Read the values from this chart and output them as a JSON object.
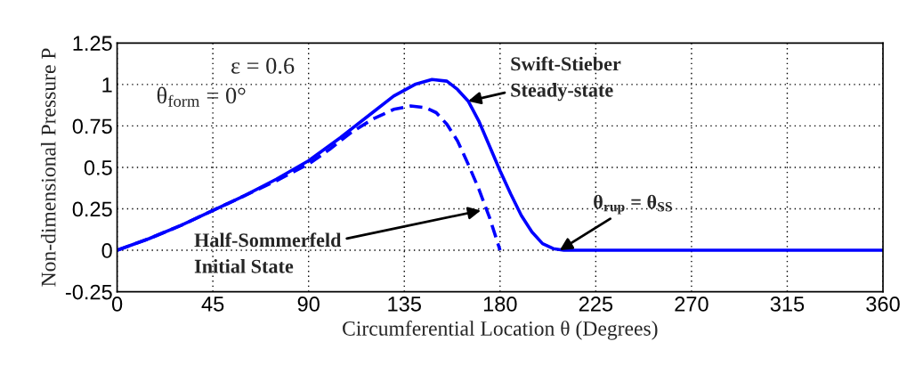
{
  "chart_data": {
    "type": "line",
    "xlabel": "Circumferential Location θ (Degrees)",
    "ylabel": "Non-dimensional Pressure P",
    "xlim": [
      0,
      360
    ],
    "xticks": [
      0,
      45,
      90,
      135,
      180,
      225,
      270,
      315,
      360
    ],
    "ylim": [
      -0.25,
      1.25
    ],
    "yticks": [
      -0.25,
      0,
      0.25,
      0.5,
      0.75,
      1,
      1.25
    ],
    "grid": true,
    "legend": false,
    "marker": "none",
    "series": [
      {
        "color": "#0000ff",
        "line_style": "solid",
        "x": [
          0,
          15,
          30,
          45,
          60,
          75,
          90,
          105,
          120,
          130,
          140,
          148,
          155,
          160,
          165,
          170,
          175,
          180,
          185,
          190,
          195,
          200,
          205,
          210,
          360
        ],
        "values": [
          0,
          0.07,
          0.15,
          0.24,
          0.33,
          0.43,
          0.54,
          0.68,
          0.83,
          0.93,
          1.0,
          1.03,
          1.02,
          0.97,
          0.9,
          0.78,
          0.63,
          0.48,
          0.34,
          0.21,
          0.11,
          0.04,
          0.01,
          0,
          0
        ]
      },
      {
        "color": "#0000ff",
        "line_style": "dashed",
        "x": [
          0,
          15,
          30,
          45,
          60,
          75,
          90,
          100,
          110,
          120,
          130,
          138,
          145,
          150,
          155,
          160,
          165,
          170,
          175,
          178,
          180
        ],
        "values": [
          0,
          0.07,
          0.15,
          0.24,
          0.33,
          0.42,
          0.52,
          0.61,
          0.71,
          0.79,
          0.85,
          0.87,
          0.86,
          0.83,
          0.76,
          0.66,
          0.52,
          0.37,
          0.2,
          0.08,
          0
        ]
      }
    ],
    "annotations": [
      "ε = 0.6",
      "θ$_{form}$ = 0°",
      {
        "text": "Swift-Stieber\nSteady-state",
        "x": 165,
        "y": 0.9
      },
      {
        "text": "Half-Sommerfeld\nInitial State",
        "x": 171,
        "y": 0.24
      },
      {
        "text": "θ$_{rup}$ = θ$_{SS}$",
        "x": 208,
        "y": 0
      }
    ]
  }
}
